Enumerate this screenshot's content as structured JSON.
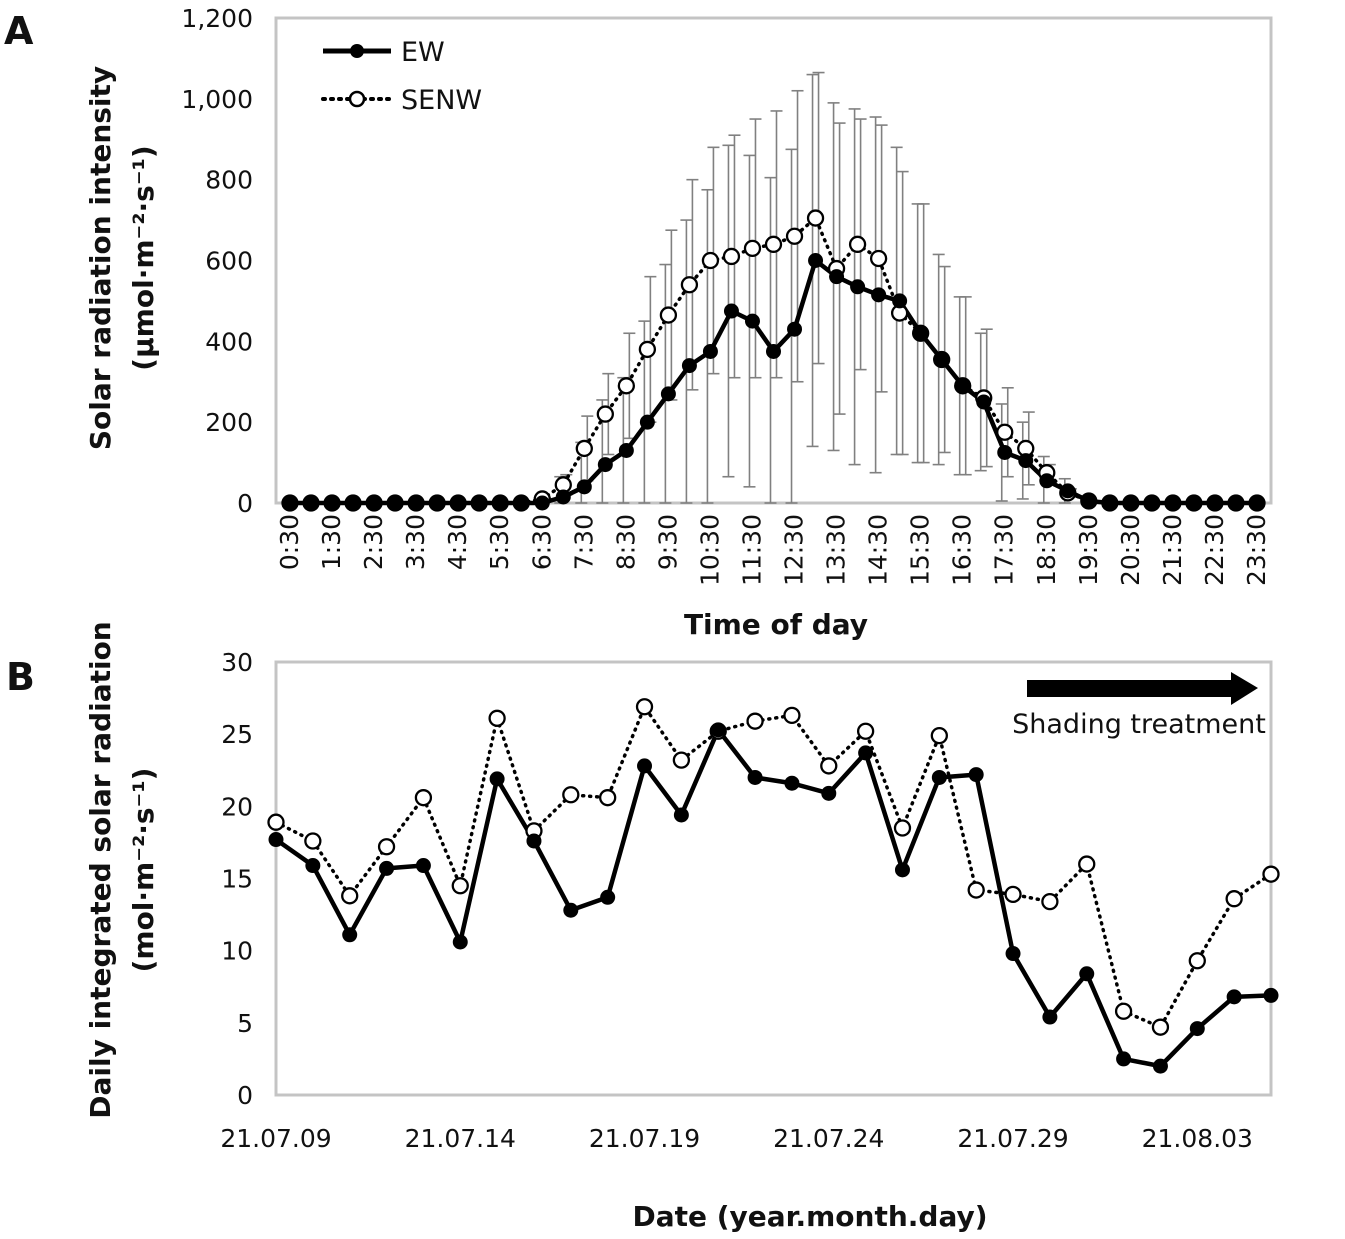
{
  "chart_data": [
    {
      "panel": "A",
      "type": "line",
      "xlabel": "Time of day",
      "ylabel_lines": [
        "Solar radiation intensity",
        "(μmol·m⁻²·s⁻¹)"
      ],
      "ylim": [
        0,
        1200
      ],
      "yticks": [
        "0",
        "200",
        "400",
        "600",
        "800",
        "1,000",
        "1,200"
      ],
      "x": [
        "0:30",
        "1:00",
        "1:30",
        "2:00",
        "2:30",
        "3:00",
        "3:30",
        "4:00",
        "4:30",
        "5:00",
        "5:30",
        "6:00",
        "6:30",
        "7:00",
        "7:30",
        "8:00",
        "8:30",
        "9:00",
        "9:30",
        "10:00",
        "10:30",
        "11:00",
        "11:30",
        "12:00",
        "12:30",
        "13:00",
        "13:30",
        "14:00",
        "14:30",
        "15:00",
        "15:30",
        "16:00",
        "16:30",
        "17:00",
        "17:30",
        "18:00",
        "18:30",
        "19:00",
        "19:30",
        "20:00",
        "20:30",
        "21:00",
        "21:30",
        "22:00",
        "22:30",
        "23:00",
        "23:30"
      ],
      "xtick_labels": [
        "0:30",
        "1:30",
        "2:30",
        "3:30",
        "4:30",
        "5:30",
        "6:30",
        "7:30",
        "8:30",
        "9:30",
        "10:30",
        "11:30",
        "12:30",
        "13:30",
        "14:30",
        "15:30",
        "16:30",
        "17:30",
        "18:30",
        "19:30",
        "20:30",
        "21:30",
        "22:30",
        "23:30"
      ],
      "grid": false,
      "legend_position": "top-left",
      "series": [
        {
          "name": "EW",
          "style": "solid",
          "marker": "filled",
          "values": [
            0,
            0,
            0,
            0,
            0,
            0,
            0,
            0,
            0,
            0,
            0,
            0,
            0,
            15,
            40,
            95,
            130,
            200,
            270,
            340,
            375,
            475,
            450,
            375,
            430,
            600,
            560,
            535,
            515,
            500,
            420,
            355,
            290,
            250,
            125,
            105,
            55,
            30,
            5,
            0,
            0,
            0,
            0,
            0,
            0,
            0,
            0
          ],
          "error": [
            0,
            0,
            0,
            0,
            0,
            0,
            0,
            0,
            0,
            0,
            0,
            0,
            0,
            50,
            110,
            160,
            180,
            250,
            320,
            360,
            400,
            410,
            410,
            430,
            445,
            460,
            430,
            440,
            440,
            380,
            320,
            260,
            220,
            170,
            120,
            95,
            60,
            30,
            0,
            0,
            0,
            0,
            0,
            0,
            0,
            0,
            0
          ]
        },
        {
          "name": "SENW",
          "style": "dotted",
          "marker": "open",
          "values": [
            0,
            0,
            0,
            0,
            0,
            0,
            0,
            0,
            0,
            0,
            0,
            0,
            10,
            45,
            135,
            220,
            290,
            380,
            465,
            540,
            600,
            610,
            630,
            640,
            660,
            705,
            580,
            640,
            605,
            470,
            420,
            355,
            290,
            260,
            175,
            135,
            75,
            25,
            5,
            0,
            0,
            0,
            0,
            0,
            0,
            0,
            0
          ],
          "error": [
            0,
            0,
            0,
            0,
            0,
            0,
            0,
            0,
            0,
            0,
            0,
            0,
            0,
            25,
            80,
            100,
            130,
            180,
            210,
            260,
            280,
            300,
            320,
            330,
            360,
            360,
            360,
            310,
            330,
            350,
            320,
            230,
            220,
            170,
            110,
            90,
            20,
            10,
            0,
            0,
            0,
            0,
            0,
            0,
            0,
            0,
            0
          ]
        }
      ]
    },
    {
      "panel": "B",
      "type": "line",
      "xlabel": "Date (year.month.day)",
      "ylabel_lines": [
        "Daily integrated solar radiation",
        "(mol·m⁻²·s⁻¹)"
      ],
      "ylim": [
        0,
        30
      ],
      "yticks": [
        "0",
        "5",
        "10",
        "15",
        "20",
        "25",
        "30"
      ],
      "x": [
        "21.07.09",
        "21.07.10",
        "21.07.11",
        "21.07.12",
        "21.07.13",
        "21.07.14",
        "21.07.15",
        "21.07.16",
        "21.07.17",
        "21.07.18",
        "21.07.19",
        "21.07.20",
        "21.07.21",
        "21.07.22",
        "21.07.23",
        "21.07.24",
        "21.07.25",
        "21.07.26",
        "21.07.27",
        "21.07.28",
        "21.07.29",
        "21.07.30",
        "21.07.31",
        "21.08.01",
        "21.08.02",
        "21.08.03",
        "21.08.04",
        "21.08.05"
      ],
      "xtick_labels": [
        "21.07.09",
        "21.07.14",
        "21.07.19",
        "21.07.24",
        "21.07.29",
        "21.08.03"
      ],
      "grid": false,
      "annotation": "Shading treatment",
      "series": [
        {
          "name": "EW",
          "style": "solid",
          "marker": "filled",
          "values": [
            17.7,
            15.9,
            11.1,
            15.7,
            15.9,
            10.6,
            21.9,
            17.6,
            12.8,
            13.7,
            22.8,
            19.4,
            25.3,
            22.0,
            21.6,
            20.9,
            23.7,
            15.6,
            22.0,
            22.2,
            9.8,
            5.4,
            8.4,
            2.5,
            2.0,
            4.6,
            6.8,
            6.9
          ]
        },
        {
          "name": "SENW",
          "style": "dotted",
          "marker": "open",
          "values": [
            18.9,
            17.6,
            13.8,
            17.2,
            20.6,
            14.5,
            26.1,
            18.3,
            20.8,
            20.6,
            26.9,
            23.2,
            25.2,
            25.9,
            26.3,
            22.8,
            25.2,
            18.5,
            24.9,
            14.2,
            13.9,
            13.4,
            16.0,
            5.8,
            4.7,
            9.3,
            13.6,
            15.3
          ]
        }
      ]
    }
  ],
  "panels": {
    "a_letter": "A",
    "b_letter": "B"
  },
  "legend": {
    "ew_label": "EW",
    "senw_label": "SENW"
  },
  "colors": {
    "axis_frame": "#c4c4c4",
    "error_bar": "#808080",
    "line": "#000000",
    "open_marker_fill": "#ffffff"
  }
}
